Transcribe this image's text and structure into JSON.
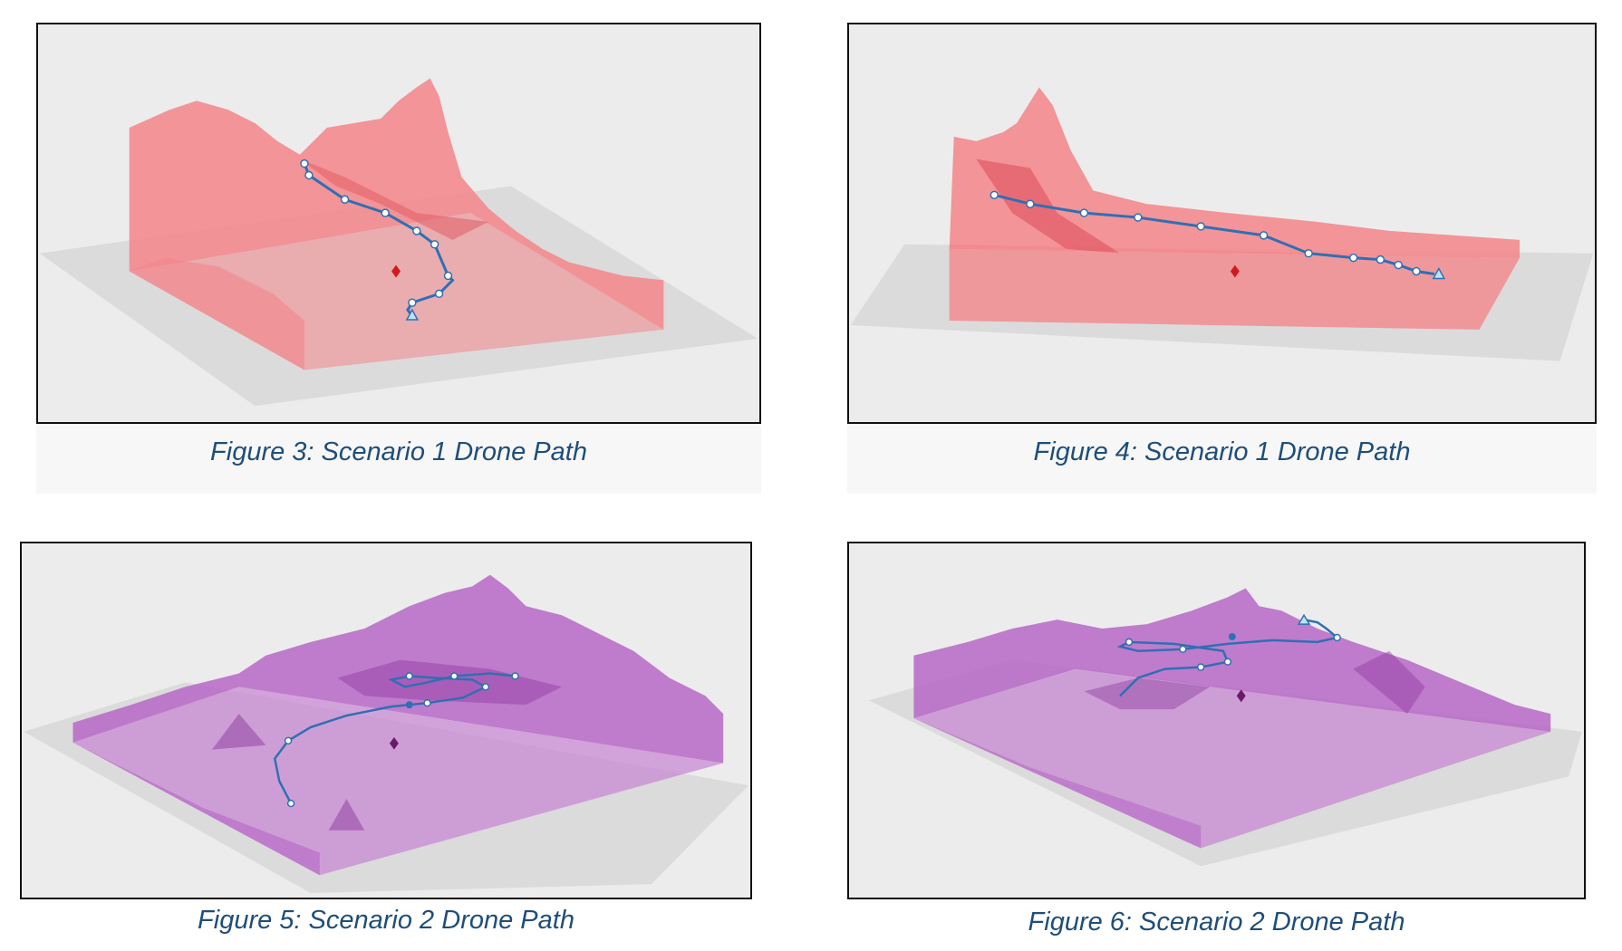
{
  "figures": [
    {
      "caption": "Figure 3: Scenario 1 Drone Path"
    },
    {
      "caption": "Figure 4: Scenario 1 Drone Path"
    },
    {
      "caption": "Figure 5: Scenario 2 Drone Path"
    },
    {
      "caption": "Figure 6: Scenario 2 Drone Path"
    }
  ],
  "colors": {
    "scenario1_terrain": "#f4858a",
    "scenario2_terrain": "#b45fc4",
    "path": "#2f6fb3",
    "target_marker_s1": "#d11a1a",
    "target_marker_s2": "#6a1a6a",
    "ground_plane": "#d9d9d9",
    "caption_text": "#1f4e79"
  }
}
